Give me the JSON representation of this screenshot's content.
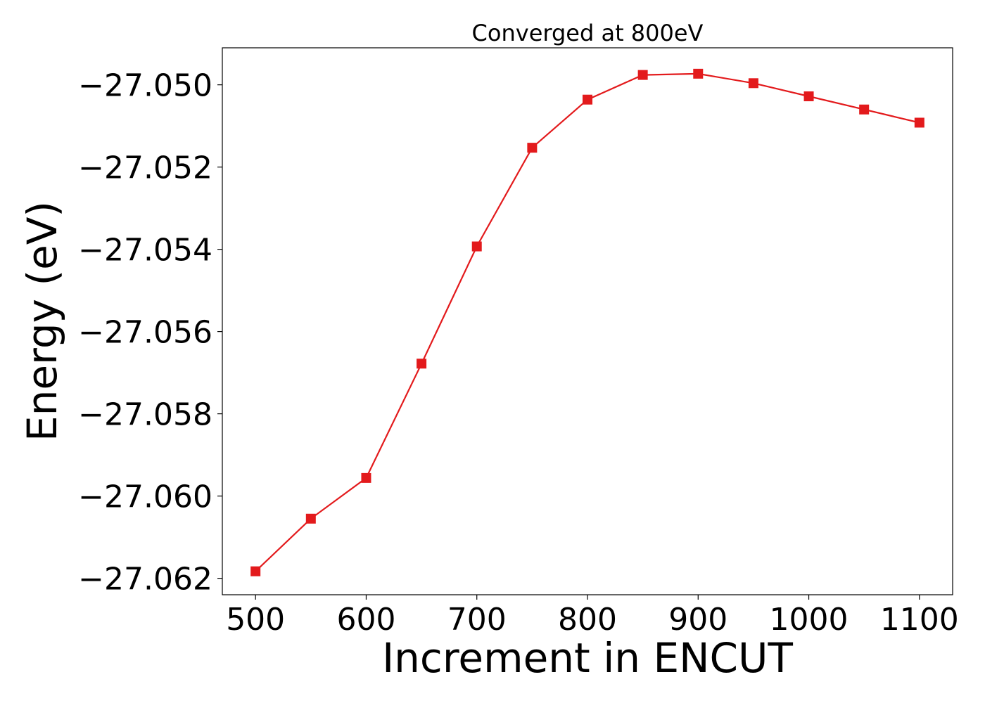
{
  "chart_data": {
    "type": "line",
    "title": "Converged at 800eV",
    "xlabel": "Increment in ENCUT",
    "ylabel": "Energy (eV)",
    "x": [
      500,
      550,
      600,
      650,
      700,
      750,
      800,
      850,
      900,
      950,
      1000,
      1050,
      1100
    ],
    "series": [
      {
        "values": [
          -27.06183,
          -27.06055,
          -27.05956,
          -27.05678,
          -27.05393,
          -27.05153,
          -27.05036,
          -27.04976,
          -27.04973,
          -27.04996,
          -27.05028,
          -27.0506,
          -27.05092
        ],
        "color": "#e31a1c",
        "marker": "square"
      }
    ],
    "xticks": [
      500,
      600,
      700,
      800,
      900,
      1000,
      1100
    ],
    "xtick_labels": [
      "500",
      "600",
      "700",
      "800",
      "900",
      "1000",
      "1100"
    ],
    "yticks": [
      -27.05,
      -27.052,
      -27.054,
      -27.056,
      -27.058,
      -27.06,
      -27.062
    ],
    "ytick_labels": [
      "−27.050",
      "−27.052",
      "−27.054",
      "−27.056",
      "−27.058",
      "−27.060",
      "−27.062"
    ],
    "xlim": [
      470,
      1130
    ],
    "ylim": [
      -27.0624,
      -27.0491
    ],
    "grid": false,
    "legend": "none"
  }
}
